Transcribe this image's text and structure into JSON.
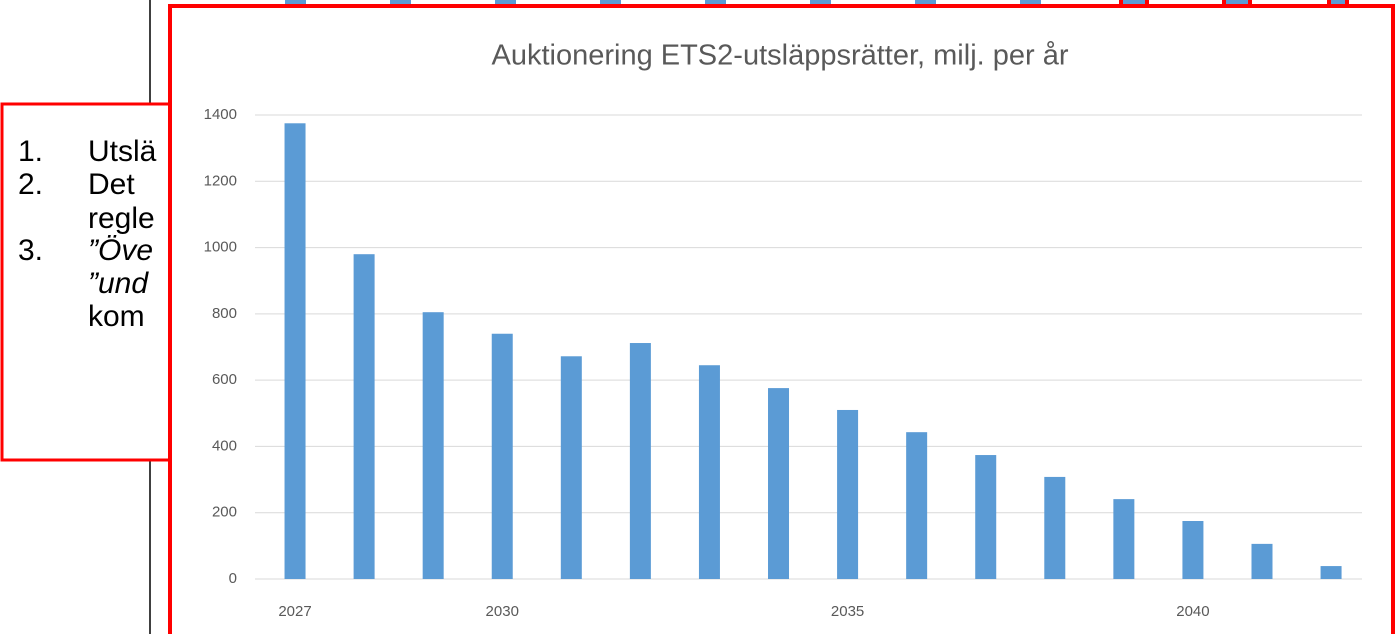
{
  "text_box": {
    "items": [
      {
        "number": "1.",
        "lines": [
          "Utslä"
        ]
      },
      {
        "number": "2.",
        "lines": [
          "Det",
          "regle"
        ]
      },
      {
        "number": "3.",
        "lines": [
          "”Öve",
          "”und",
          "kom"
        ]
      }
    ]
  },
  "chart_data": {
    "type": "bar",
    "title": "Auktionering ETS2-utsläppsrätter, milj. per år",
    "categories": [
      "2027",
      null,
      null,
      "2030",
      null,
      null,
      null,
      null,
      "2035",
      null,
      null,
      null,
      null,
      "2040",
      null,
      null
    ],
    "values": [
      1375,
      980,
      805,
      740,
      672,
      712,
      645,
      576,
      510,
      443,
      374,
      308,
      241,
      175,
      106,
      39
    ],
    "color": "#5b9bd5",
    "ylim": [
      0,
      1400
    ],
    "yticks": [
      0,
      200,
      400,
      600,
      800,
      1000,
      1200,
      1400
    ],
    "grid": true
  }
}
